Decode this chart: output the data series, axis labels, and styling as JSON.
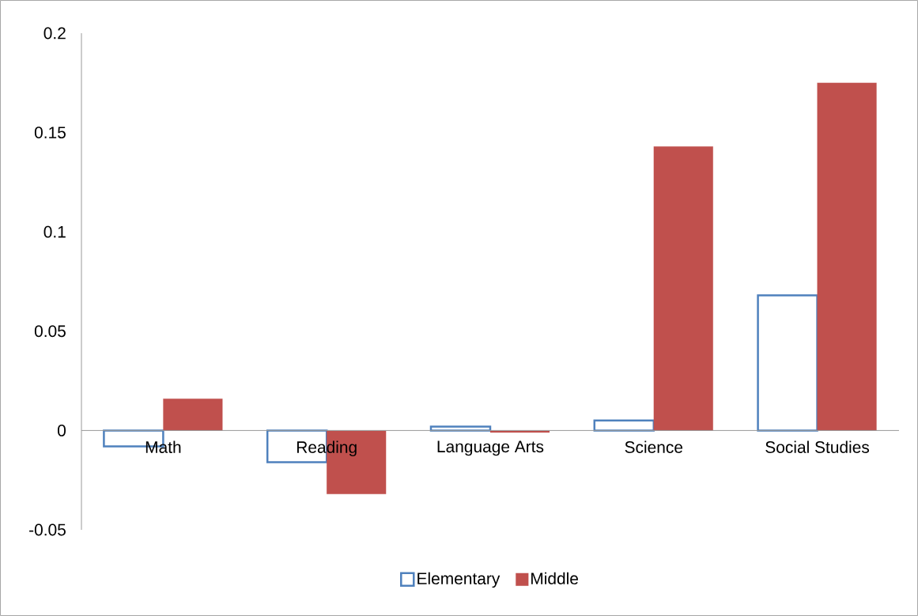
{
  "chart_data": {
    "type": "bar",
    "categories": [
      "Math",
      "Reading",
      "Language Arts",
      "Science",
      "Social Studies"
    ],
    "series": [
      {
        "name": "Elementary",
        "color": "#4f81bd",
        "values": [
          -0.008,
          -0.016,
          0.002,
          0.005,
          0.068
        ]
      },
      {
        "name": "Middle",
        "color": "#c0504d",
        "values": [
          0.016,
          -0.032,
          -0.001,
          0.143,
          0.175
        ]
      }
    ],
    "ylim": [
      -0.05,
      0.2
    ],
    "yticks": [
      -0.05,
      0,
      0.05,
      0.1,
      0.15,
      0.2
    ],
    "grid": false,
    "legend": "bottom"
  }
}
